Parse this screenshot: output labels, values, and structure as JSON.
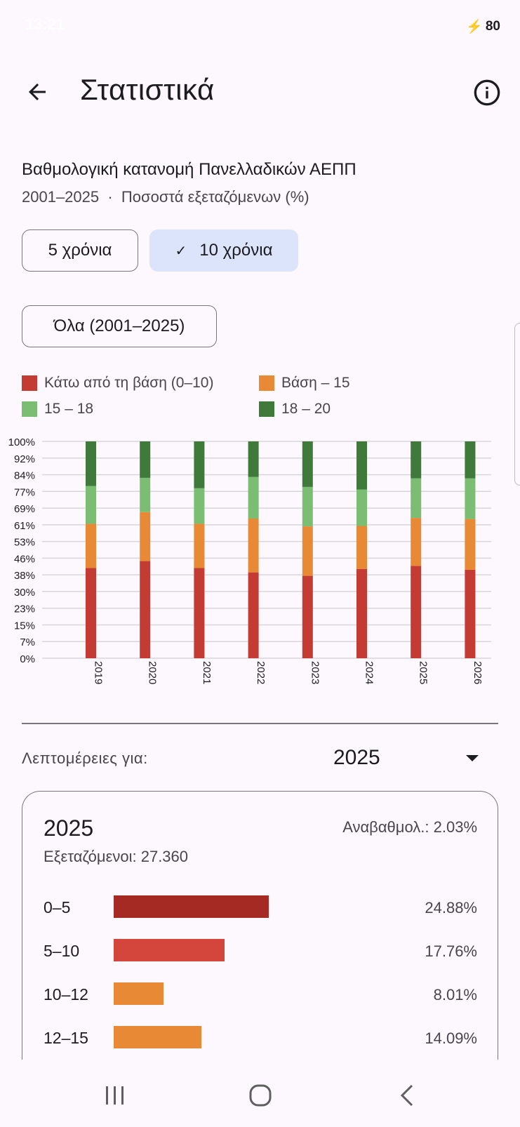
{
  "status_bar": {
    "time": "13:21",
    "battery": "80"
  },
  "header": {
    "title": "Στατιστικά"
  },
  "section": {
    "heading": "Βαθμολογική κατανομή Πανελλαδικών ΑΕΠΠ",
    "subheading": "2001–2025  ·  Ποσοστά εξεταζόμενων (%)"
  },
  "filters": {
    "chip_5": "5 χρόνια",
    "chip_10": "10 χρόνια",
    "chip_all": "Όλα (2001–2025)"
  },
  "legend": [
    {
      "label": "Κάτω από τη βάση (0–10)",
      "color": "#c43b33"
    },
    {
      "label": "Βάση – 15",
      "color": "#e88a35"
    },
    {
      "label": "15 – 18",
      "color": "#7bbd72"
    },
    {
      "label": "18 – 20",
      "color": "#3f7a3a"
    }
  ],
  "chart_data": {
    "type": "bar",
    "stacked": true,
    "categories": [
      "2019",
      "2020",
      "2021",
      "2022",
      "2023",
      "2024",
      "2025",
      "2026"
    ],
    "y_ticks": [
      "100%",
      "92%",
      "84%",
      "77%",
      "69%",
      "61%",
      "53%",
      "46%",
      "38%",
      "30%",
      "23%",
      "15%",
      "7%",
      "0%"
    ],
    "ylim": [
      0,
      100
    ],
    "grid": true,
    "series": [
      {
        "name": "Κάτω από τη βάση (0–10)",
        "color": "#c43b33",
        "values": [
          41.6,
          44.8,
          41.6,
          39.6,
          38.0,
          41.2,
          42.6,
          40.8
        ]
      },
      {
        "name": "Βάση – 15",
        "color": "#e88a35",
        "values": [
          20.4,
          22.6,
          20.4,
          24.8,
          22.8,
          19.8,
          22.1,
          23.4
        ]
      },
      {
        "name": "15 – 18",
        "color": "#7bbd72",
        "values": [
          17.4,
          15.8,
          16.4,
          19.2,
          18.2,
          16.8,
          18.3,
          18.8
        ]
      },
      {
        "name": "18 – 20",
        "color": "#3f7a3a",
        "values": [
          20.6,
          16.8,
          21.6,
          16.4,
          21.0,
          22.2,
          17.0,
          17.0
        ]
      }
    ]
  },
  "details": {
    "label": "Λεπτομέρειες για:",
    "selected_year": "2025",
    "card": {
      "year": "2025",
      "upgrade": "Αναβαθμολ.: 2.03%",
      "examinees": "Εξεταζόμενοι: 27.360",
      "rows": [
        {
          "label": "0–5",
          "value": "24.88%",
          "pct": 24.88,
          "color": "#a52a23"
        },
        {
          "label": "5–10",
          "value": "17.76%",
          "pct": 17.76,
          "color": "#d4463c"
        },
        {
          "label": "10–12",
          "value": "8.01%",
          "pct": 8.01,
          "color": "#e88a35"
        },
        {
          "label": "12–15",
          "value": "14.09%",
          "pct": 14.09,
          "color": "#e88a35"
        }
      ]
    }
  }
}
